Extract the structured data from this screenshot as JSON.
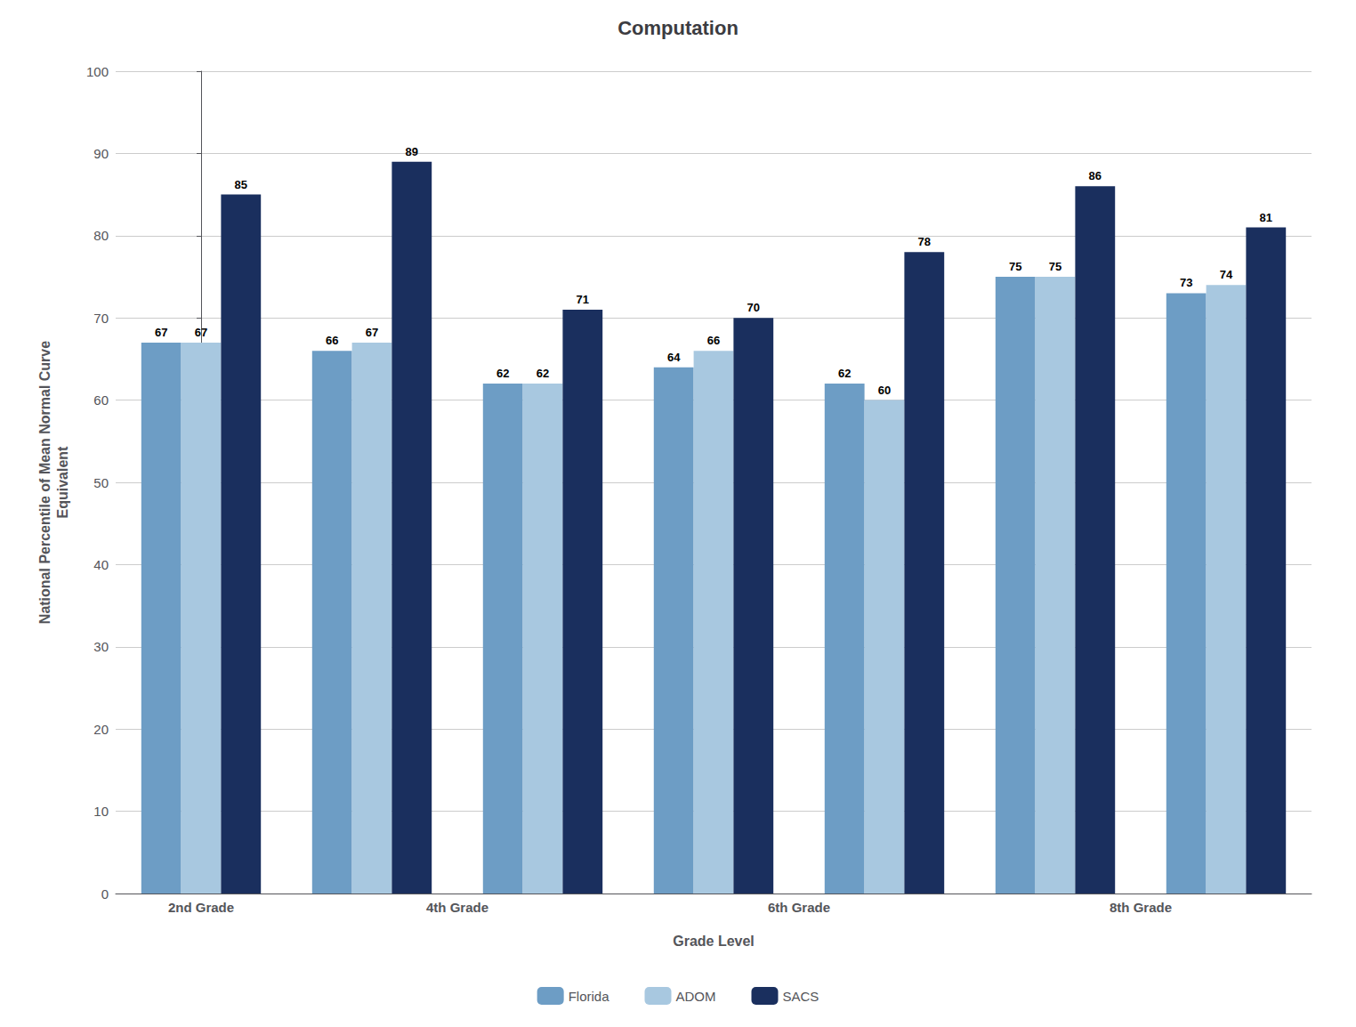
{
  "chart_data": {
    "type": "bar",
    "title": "Computation",
    "xlabel": "Grade Level",
    "ylabel": "National Percentile of Mean Normal Curve\nEquivalent",
    "categories": [
      "2nd Grade",
      "4th Grade",
      null,
      "6th Grade",
      null,
      "8th Grade",
      null
    ],
    "series": [
      {
        "name": "Florida",
        "color": "#6d9dc5",
        "values": [
          67,
          66,
          62,
          64,
          62,
          75,
          73
        ]
      },
      {
        "name": "ADOM",
        "color": "#a8c8e0",
        "values": [
          67,
          67,
          62,
          66,
          60,
          75,
          74
        ]
      },
      {
        "name": "SACS",
        "color": "#1a2f5e",
        "values": [
          85,
          89,
          71,
          70,
          78,
          86,
          81
        ]
      }
    ],
    "ylim": [
      0,
      100
    ],
    "yticks": [
      0,
      10,
      20,
      30,
      40,
      50,
      60,
      70,
      80,
      90,
      100
    ],
    "grid": true,
    "legend": "bottom",
    "data_labels": true
  }
}
